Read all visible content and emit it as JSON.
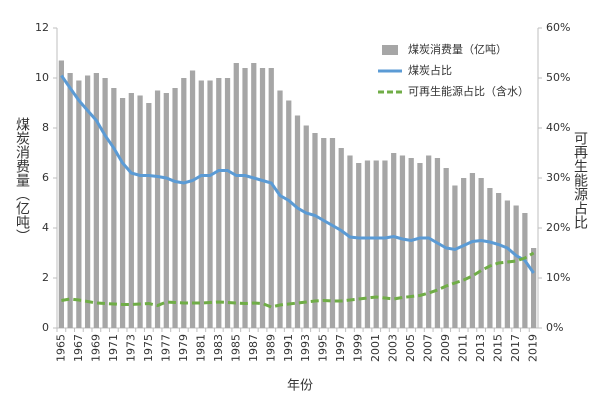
{
  "chart_data": {
    "type": "bar-line",
    "x_label": "年份",
    "y_label": "煤炭消费量（亿吨）",
    "y2_label": "可再生能源占比",
    "categories": [
      "1965",
      null,
      "1967",
      null,
      "1969",
      null,
      "1971",
      null,
      "1973",
      null,
      "1975",
      null,
      "1977",
      null,
      "1979",
      null,
      "1981",
      null,
      "1983",
      null,
      "1985",
      null,
      "1987",
      null,
      "1989",
      null,
      "1991",
      null,
      "1993",
      null,
      "1995",
      null,
      "1997",
      null,
      "1999",
      null,
      "2001",
      null,
      "2003",
      null,
      "2005",
      null,
      "2007",
      null,
      "2009",
      null,
      "2011",
      null,
      "2013",
      null,
      "2015",
      null,
      "2017",
      null,
      "2019"
    ],
    "ylim": [
      0,
      12
    ],
    "yticks": [
      0,
      2,
      4,
      6,
      8,
      10,
      12
    ],
    "y2lim": [
      0,
      60
    ],
    "y2ticks": [
      {
        "value": 0,
        "label": "0%"
      },
      {
        "value": 10,
        "label": "10%"
      },
      {
        "value": 20,
        "label": "20%"
      },
      {
        "value": 30,
        "label": "30%"
      },
      {
        "value": 40,
        "label": "40%"
      },
      {
        "value": 50,
        "label": "50%"
      },
      {
        "value": 60,
        "label": "60%"
      }
    ],
    "series": [
      {
        "name": "煤炭消费量（亿吨）",
        "kind": "bar",
        "color": "#a6a6a6",
        "values": [
          10.7,
          10.2,
          9.9,
          10.1,
          10.2,
          10.0,
          9.6,
          9.2,
          9.4,
          9.3,
          9.0,
          9.5,
          9.4,
          9.6,
          10.0,
          10.3,
          9.9,
          9.9,
          10.0,
          10.0,
          10.6,
          10.4,
          10.6,
          10.4,
          10.4,
          9.5,
          9.1,
          8.5,
          8.1,
          7.8,
          7.6,
          7.6,
          7.2,
          6.9,
          6.6,
          6.7,
          6.7,
          6.7,
          7.0,
          6.9,
          6.8,
          6.6,
          6.9,
          6.8,
          6.4,
          5.7,
          6.0,
          6.2,
          6.0,
          5.6,
          5.4,
          5.1,
          4.9,
          4.6,
          3.2
        ]
      },
      {
        "name": "煤炭占比",
        "kind": "line",
        "axis": "y2",
        "color": "#5b9bd5",
        "values": [
          50.5,
          48,
          45.5,
          43.5,
          41.5,
          38.5,
          36,
          33,
          31,
          30.5,
          30.5,
          30.3,
          30,
          29.3,
          29,
          29.5,
          30.5,
          30.5,
          31.5,
          31.5,
          30.5,
          30.5,
          30,
          29.5,
          29,
          26.5,
          25.5,
          24,
          23,
          22.5,
          21.5,
          20.5,
          19.5,
          18.2,
          18,
          18,
          18,
          18,
          18.3,
          17.8,
          17.5,
          18,
          18,
          17,
          16,
          15.7,
          16.5,
          17.3,
          17.5,
          17.2,
          16.7,
          16,
          14.5,
          13.5,
          11
        ]
      },
      {
        "name": "可再生能源占比（含水）",
        "kind": "line",
        "dashed": true,
        "axis": "y2",
        "color": "#70ad47",
        "values": [
          5.5,
          5.8,
          5.6,
          5.3,
          5.0,
          4.9,
          4.8,
          4.7,
          4.7,
          4.8,
          4.9,
          4.5,
          5.2,
          5.1,
          5.0,
          5.0,
          5.0,
          5.1,
          5.2,
          5.1,
          5.0,
          4.9,
          5.0,
          4.9,
          4.2,
          4.6,
          4.8,
          5.0,
          5.2,
          5.4,
          5.5,
          5.4,
          5.4,
          5.6,
          5.8,
          6.0,
          6.2,
          6.0,
          5.8,
          6.1,
          6.3,
          6.5,
          7.0,
          7.6,
          8.4,
          9.0,
          9.6,
          10.4,
          11.5,
          12.4,
          13.0,
          13.2,
          13.4,
          14.0,
          15.0
        ]
      }
    ]
  }
}
